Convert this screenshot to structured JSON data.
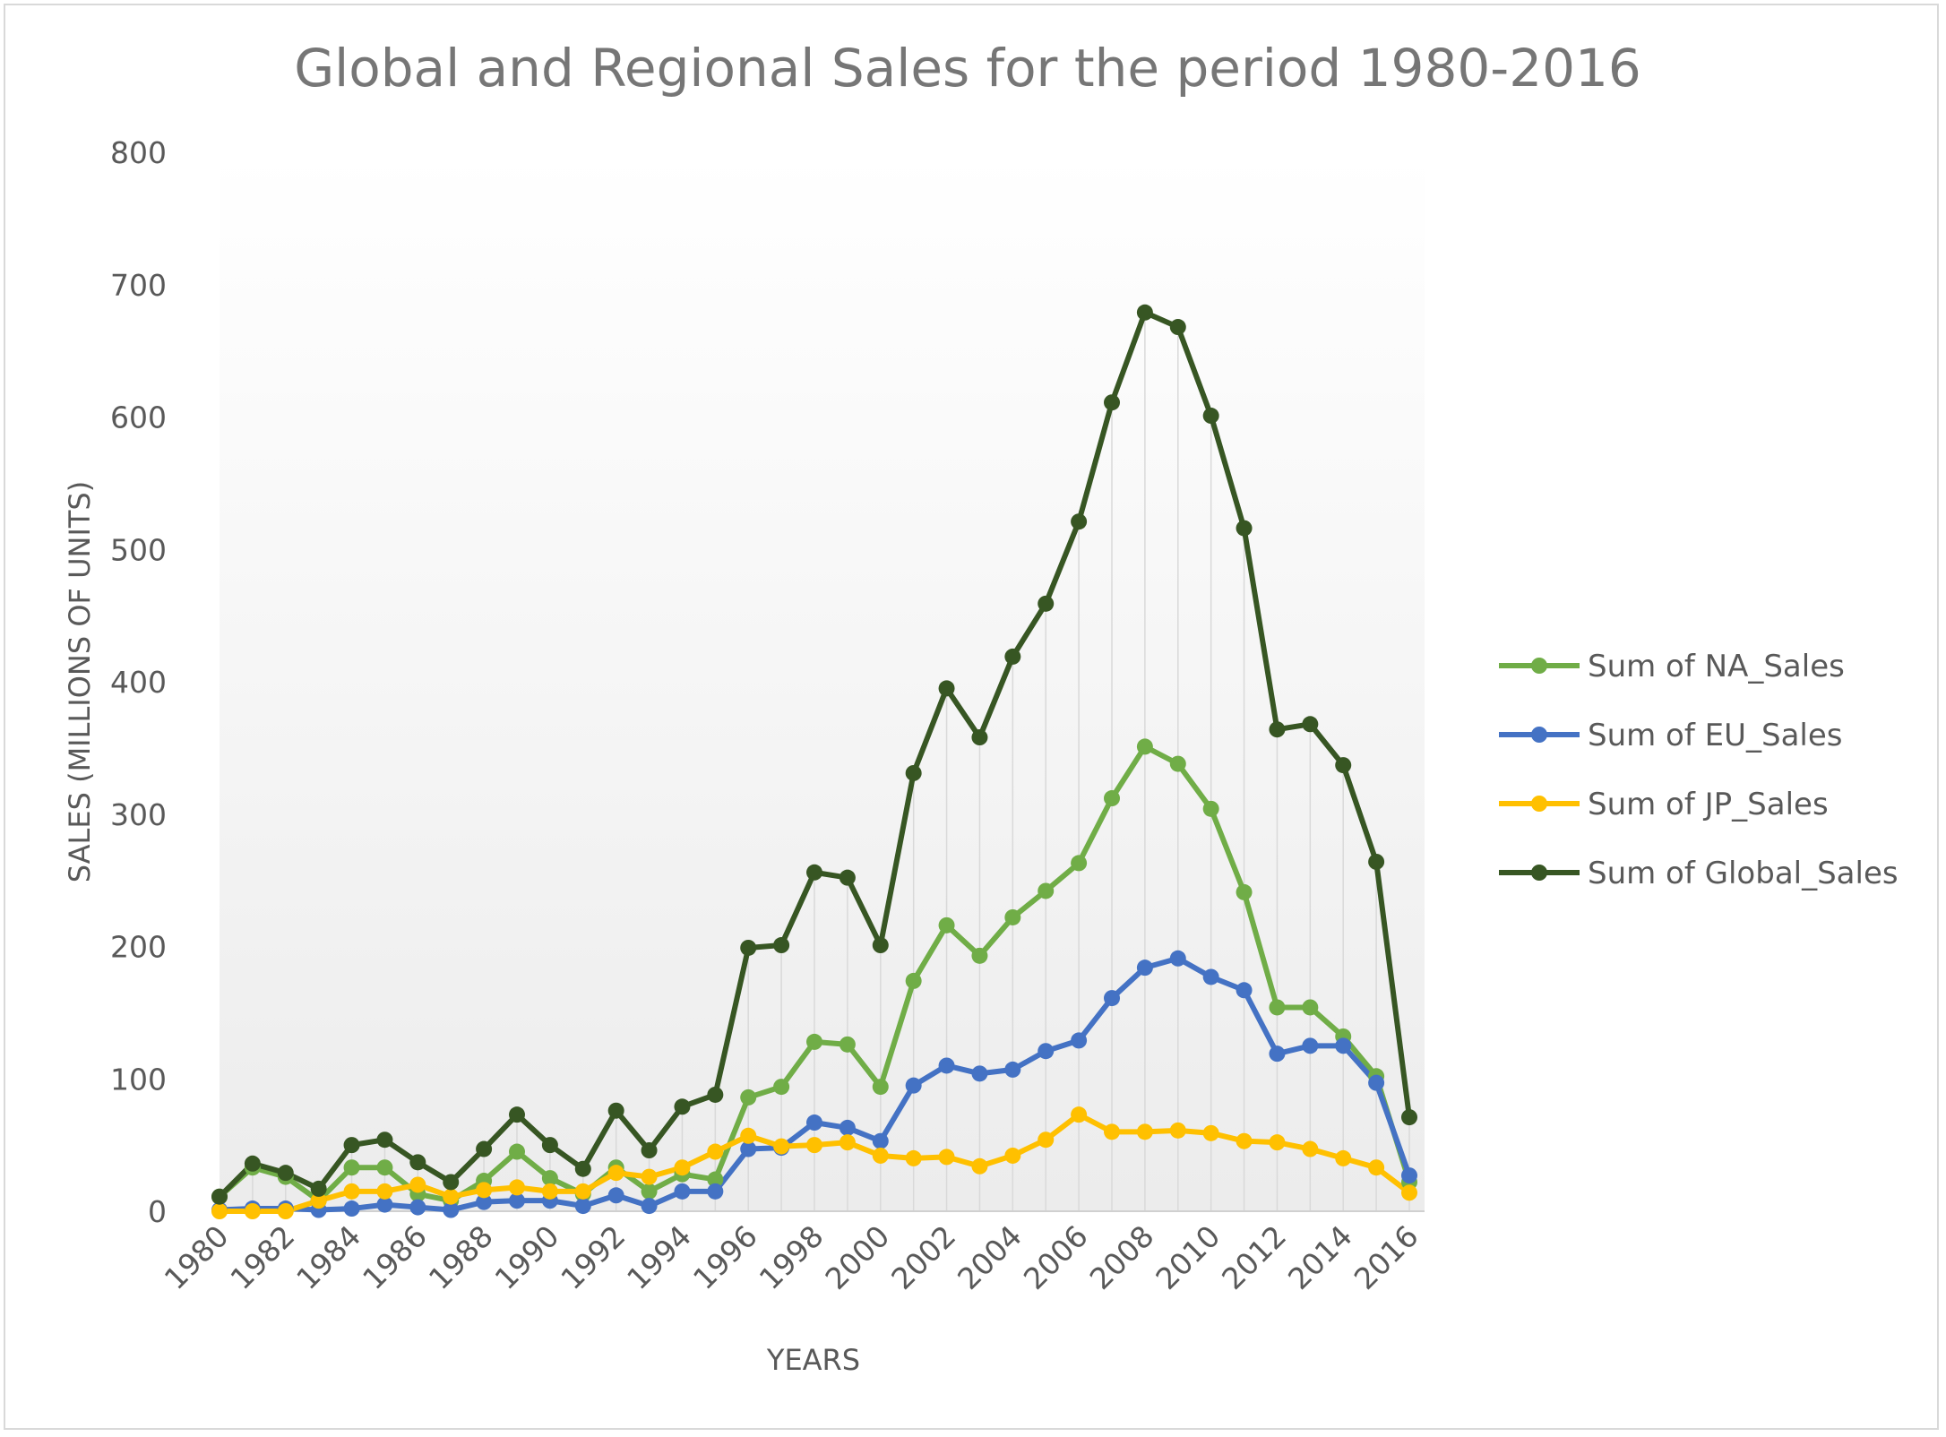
{
  "chart_data": {
    "type": "line",
    "title": "Global and Regional Sales for the period 1980-2016",
    "xlabel": "YEARS",
    "ylabel": "SALES (MILLIONS OF UNITS)",
    "ylim": [
      0,
      800
    ],
    "yticks": [
      "0",
      "100",
      "200",
      "300",
      "400",
      "500",
      "600",
      "700",
      "800"
    ],
    "xticks": [
      "1980",
      "1982",
      "1984",
      "1986",
      "1988",
      "1990",
      "1992",
      "1994",
      "1996",
      "1998",
      "2000",
      "2002",
      "2004",
      "2006",
      "2008",
      "2010",
      "2012",
      "2014",
      "2016"
    ],
    "x": [
      1980,
      1981,
      1982,
      1983,
      1984,
      1985,
      1986,
      1987,
      1988,
      1989,
      1990,
      1991,
      1992,
      1993,
      1994,
      1995,
      1996,
      1997,
      1998,
      1999,
      2000,
      2001,
      2002,
      2003,
      2004,
      2005,
      2006,
      2007,
      2008,
      2009,
      2010,
      2011,
      2012,
      2013,
      2014,
      2015,
      2016
    ],
    "grid": "vertical",
    "legend_position": "right",
    "series": [
      {
        "name": "Sum of NA_Sales",
        "color": "#70ad47",
        "values": [
          11,
          33,
          26,
          8,
          33,
          33,
          13,
          8,
          23,
          45,
          25,
          13,
          33,
          15,
          28,
          24,
          86,
          94,
          128,
          126,
          94,
          174,
          216,
          193,
          222,
          242,
          263,
          312,
          351,
          338,
          304,
          241,
          154,
          154,
          132,
          102,
          22
        ]
      },
      {
        "name": "Sum of EU_Sales",
        "color": "#4472c4",
        "values": [
          1,
          2,
          2,
          1,
          2,
          5,
          3,
          1,
          7,
          8,
          8,
          4,
          12,
          4,
          15,
          15,
          47,
          48,
          67,
          63,
          53,
          95,
          110,
          104,
          107,
          121,
          129,
          161,
          184,
          191,
          177,
          167,
          119,
          125,
          125,
          97,
          27
        ]
      },
      {
        "name": "Sum of JP_Sales",
        "color": "#ffc000",
        "values": [
          0,
          0,
          0,
          8,
          15,
          15,
          20,
          11,
          16,
          18,
          15,
          15,
          29,
          26,
          33,
          45,
          57,
          49,
          50,
          52,
          42,
          40,
          41,
          34,
          42,
          54,
          73,
          60,
          60,
          61,
          59,
          53,
          52,
          47,
          40,
          33,
          14
        ]
      },
      {
        "name": "Sum of Global_Sales",
        "color": "#375623",
        "values": [
          11,
          36,
          29,
          17,
          50,
          54,
          37,
          22,
          47,
          73,
          50,
          32,
          76,
          46,
          79,
          88,
          199,
          201,
          256,
          252,
          201,
          331,
          395,
          358,
          419,
          459,
          521,
          611,
          679,
          668,
          601,
          516,
          364,
          368,
          337,
          264,
          71
        ]
      }
    ]
  }
}
